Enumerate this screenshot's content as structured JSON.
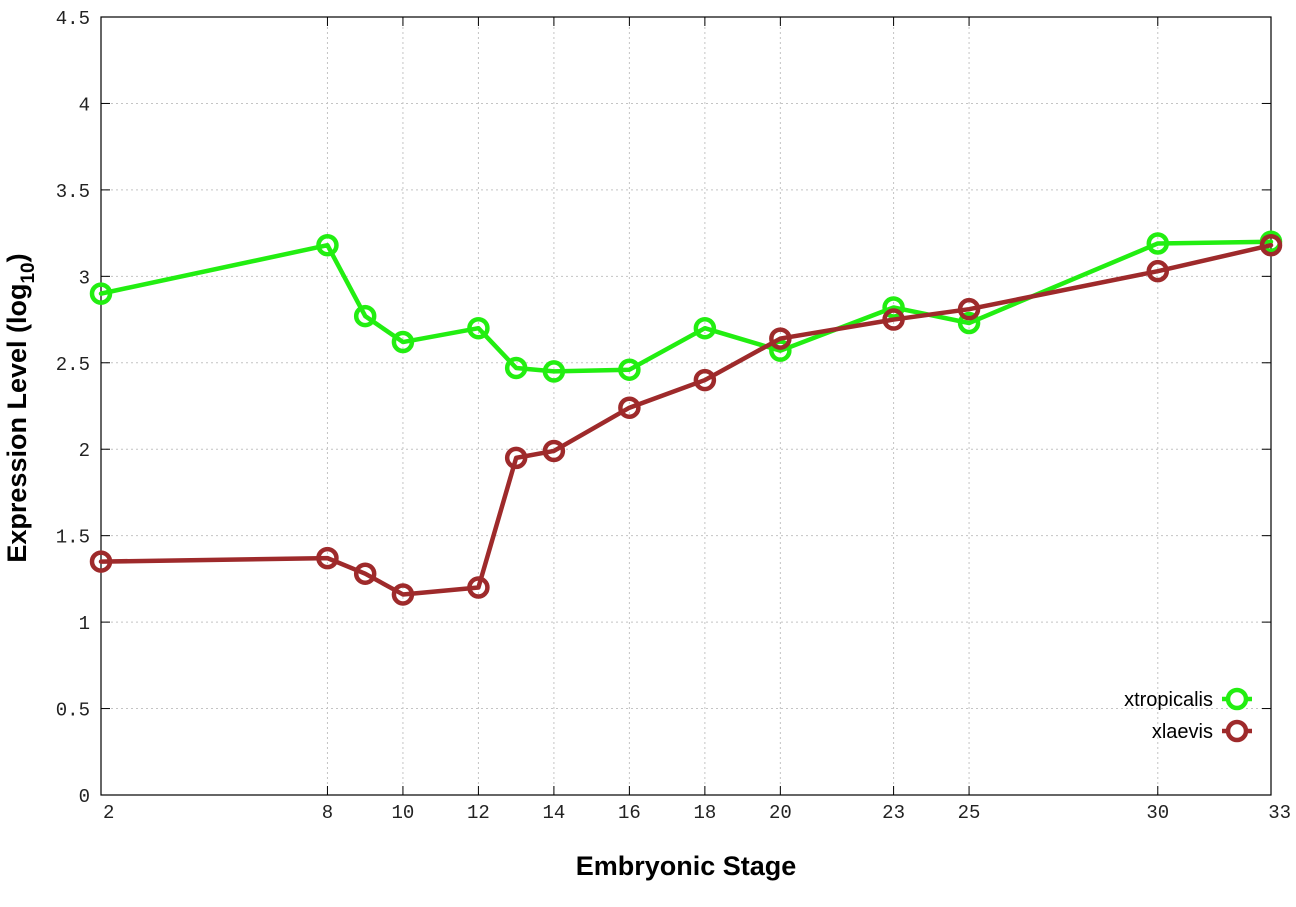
{
  "chart_data": {
    "type": "line",
    "title": "",
    "xlabel": "Embryonic Stage",
    "ylabel_main": "Expression Level (log",
    "ylabel_sub": "10",
    "ylabel_close": ")",
    "ylim": [
      0,
      4.5
    ],
    "xlim": [
      2,
      33
    ],
    "x": [
      2,
      8,
      9,
      10,
      12,
      13,
      14,
      16,
      18,
      20,
      23,
      25,
      30,
      33
    ],
    "xticks": [
      2,
      8,
      10,
      12,
      14,
      16,
      18,
      20,
      23,
      25,
      30,
      33
    ],
    "xtick_labels": [
      "2",
      "8",
      "10",
      "12",
      "14",
      "16",
      "18",
      "20",
      "23",
      "25",
      "30",
      "33"
    ],
    "yticks": [
      0,
      0.5,
      1,
      1.5,
      2,
      2.5,
      3,
      3.5,
      4,
      4.5
    ],
    "ytick_labels": [
      "0",
      "0.5",
      "1",
      "1.5",
      "2",
      "2.5",
      "3",
      "3.5",
      "4",
      "4.5"
    ],
    "grid": true,
    "legend_position": "bottom-right",
    "series": [
      {
        "name": "xtropicalis",
        "color": "#22ee11",
        "marker": "open-circle",
        "values": [
          2.9,
          3.18,
          2.77,
          2.62,
          2.7,
          2.47,
          2.45,
          2.46,
          2.7,
          2.57,
          2.82,
          2.73,
          3.19,
          3.2
        ]
      },
      {
        "name": "xlaevis",
        "color": "#9e2a2b",
        "marker": "open-circle",
        "values": [
          1.35,
          1.37,
          1.28,
          1.16,
          1.2,
          1.95,
          1.99,
          2.24,
          2.4,
          2.64,
          2.75,
          2.81,
          3.03,
          3.18
        ]
      }
    ]
  }
}
